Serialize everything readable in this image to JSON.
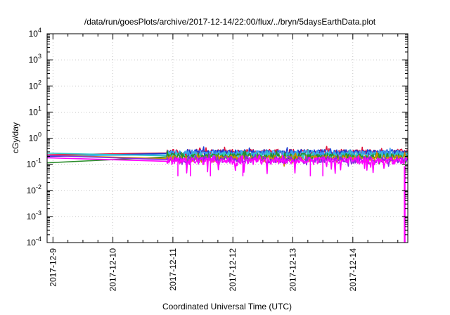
{
  "chart_data": {
    "type": "line",
    "title": "/data/run/goesPlots/archive/2017-12-14/22:00/flux/../bryn/5daysEarthData.plot",
    "xlabel": "Coordinated Universal Time (UTC)",
    "ylabel": "cGy/day",
    "yscale": "log",
    "ylim": [
      0.0001,
      10000
    ],
    "xlim": [
      "2017-12-08 21:40",
      "2017-12-14 22:00"
    ],
    "grid": true,
    "y_ticks": [
      {
        "base": "10",
        "exp": "-4"
      },
      {
        "base": "10",
        "exp": "-3"
      },
      {
        "base": "10",
        "exp": "-2"
      },
      {
        "base": "10",
        "exp": "-1"
      },
      {
        "base": "10",
        "exp": "0"
      },
      {
        "base": "10",
        "exp": "1"
      },
      {
        "base": "10",
        "exp": "2"
      },
      {
        "base": "10",
        "exp": "3"
      },
      {
        "base": "10",
        "exp": "4"
      }
    ],
    "x_ticks": [
      "2017-12-9",
      "2017-12-10",
      "2017-12-11",
      "2017-12-12",
      "2017-12-13",
      "2017-12-14"
    ],
    "series": [
      {
        "color": "#e0143c",
        "values_approx": {
          "gap_start": 0.36,
          "gap_end": 0.27,
          "noisy_mean": 0.29
        }
      },
      {
        "color": "#1e3cd2",
        "values_approx": {
          "gap_start": 0.34,
          "gap_end": 0.26,
          "noisy_mean": 0.28
        }
      },
      {
        "color": "#3ca0f0",
        "values_approx": {
          "gap_start": 0.28,
          "gap_end": 0.23,
          "noisy_mean": 0.26
        }
      },
      {
        "color": "#32c8c8",
        "values_approx": {
          "gap_start": 0.24,
          "gap_end": 0.21,
          "noisy_mean": 0.22
        }
      },
      {
        "color": "#2a8c2a",
        "values_approx": {
          "gap_start": 0.2,
          "gap_end": 0.19,
          "noisy_mean": 0.2
        }
      },
      {
        "color": "#d08c00",
        "values_approx": {
          "gap_start": 0.17,
          "gap_end": 0.165,
          "noisy_mean": 0.17
        }
      },
      {
        "color": "#8a2be2",
        "values_approx": {
          "gap_start": 0.155,
          "gap_end": 0.15,
          "noisy_mean": 0.155
        }
      },
      {
        "color": "#ff00ff",
        "values_approx": {
          "gap_start": 0.13,
          "gap_end": 0.13,
          "noisy_mean": 0.14,
          "dropout_min": 0.0001
        }
      }
    ]
  }
}
